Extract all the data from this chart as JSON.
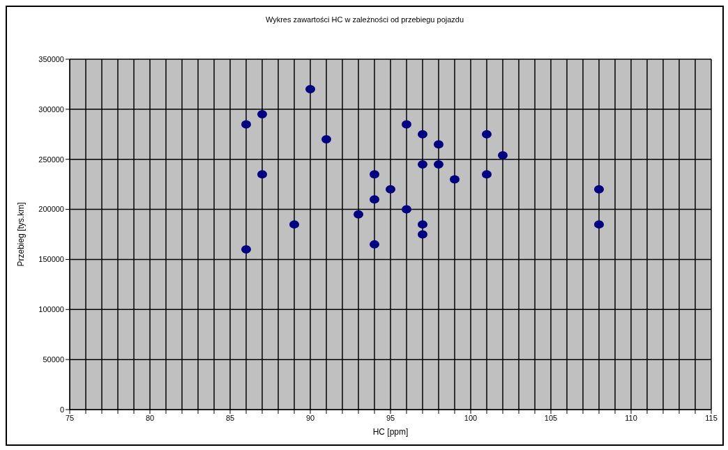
{
  "chart_data": {
    "type": "scatter",
    "title": "Wykres zawartości HC w zależności od przebiegu pojazdu",
    "xlabel": "HC [ppm]",
    "ylabel": "Przebieg [tys.km]",
    "xlim": [
      75,
      115
    ],
    "xticks": [
      75,
      {
        "value": 76,
        "label": null
      },
      {
        "value": 77,
        "label": null
      },
      {
        "value": 78,
        "label": null
      },
      {
        "value": 79,
        "label": null
      },
      80,
      {
        "value": 81,
        "label": null
      },
      {
        "value": 82,
        "label": null
      },
      {
        "value": 83,
        "label": null
      },
      {
        "value": 84,
        "label": null
      },
      85,
      {
        "value": 86,
        "label": null
      },
      {
        "value": 87,
        "label": null
      },
      {
        "value": 88,
        "label": null
      },
      {
        "value": 89,
        "label": null
      },
      90,
      {
        "value": 91,
        "label": null
      },
      {
        "value": 92,
        "label": null
      },
      {
        "value": 93,
        "label": null
      },
      {
        "value": 94,
        "label": null
      },
      95,
      {
        "value": 96,
        "label": null
      },
      {
        "value": 97,
        "label": null
      },
      {
        "value": 98,
        "label": null
      },
      {
        "value": 99,
        "label": null
      },
      100,
      {
        "value": 101,
        "label": null
      },
      {
        "value": 102,
        "label": null
      },
      {
        "value": 103,
        "label": null
      },
      {
        "value": 104,
        "label": null
      },
      105,
      {
        "value": 106,
        "label": null
      },
      {
        "value": 107,
        "label": null
      },
      {
        "value": 108,
        "label": null
      },
      {
        "value": 109,
        "label": null
      },
      110,
      {
        "value": 111,
        "label": null
      },
      {
        "value": 112,
        "label": null
      },
      {
        "value": 113,
        "label": null
      },
      {
        "value": 114,
        "label": null
      },
      115
    ],
    "ylim": [
      0,
      350000
    ],
    "yticks": [
      0,
      50000,
      100000,
      150000,
      200000,
      250000,
      300000,
      350000
    ],
    "grid": true,
    "marker": "circle",
    "series": [
      {
        "color": "#000080",
        "x": [
          86,
          86,
          87,
          87,
          89,
          90,
          91,
          93,
          94,
          94,
          94,
          95,
          96,
          96,
          97,
          97,
          97,
          97,
          98,
          98,
          99,
          101,
          101,
          102,
          108,
          108
        ],
        "values": [
          285000,
          160000,
          295000,
          235000,
          185000,
          320000,
          270000,
          195000,
          235000,
          210000,
          165000,
          220000,
          285000,
          200000,
          275000,
          245000,
          185000,
          175000,
          265000,
          245000,
          230000,
          275000,
          235000,
          254000,
          220000,
          185000
        ]
      }
    ]
  }
}
